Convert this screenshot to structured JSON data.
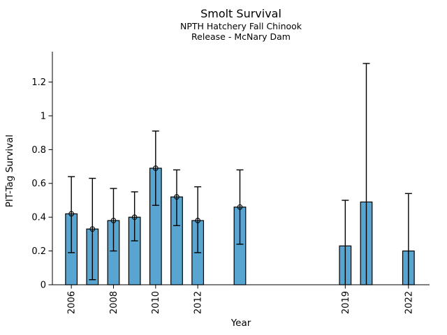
{
  "chart_data": {
    "type": "bar",
    "title": "Smolt Survival",
    "subtitle_lines": [
      "NPTH Hatchery Fall Chinook",
      "Release - McNary Dam"
    ],
    "xlabel": "Year",
    "ylabel": "PIT-Tag Survival",
    "xlim": [
      2005.1,
      2023.0
    ],
    "ylim": [
      0,
      1.38
    ],
    "xticks": [
      2006,
      2008,
      2010,
      2012,
      2019,
      2022
    ],
    "yticks": [
      0,
      0.2,
      0.4,
      0.6,
      0.8,
      1,
      1.2
    ],
    "grid": false,
    "legend": "none",
    "bar_width_years": 0.55,
    "bar_color": "#58A5D2",
    "bar_edge_color": "#000000",
    "error_bar_color": "#000000",
    "marker_style": "open-circle",
    "points": [
      {
        "year": 2006,
        "value": 0.42,
        "err_lo": 0.19,
        "err_hi": 0.64,
        "marker": true
      },
      {
        "year": 2007,
        "value": 0.33,
        "err_lo": 0.03,
        "err_hi": 0.63,
        "marker": true
      },
      {
        "year": 2008,
        "value": 0.38,
        "err_lo": 0.2,
        "err_hi": 0.57,
        "marker": true
      },
      {
        "year": 2009,
        "value": 0.4,
        "err_lo": 0.26,
        "err_hi": 0.55,
        "marker": true
      },
      {
        "year": 2010,
        "value": 0.69,
        "err_lo": 0.47,
        "err_hi": 0.91,
        "marker": true
      },
      {
        "year": 2011,
        "value": 0.52,
        "err_lo": 0.35,
        "err_hi": 0.68,
        "marker": true
      },
      {
        "year": 2012,
        "value": 0.38,
        "err_lo": 0.19,
        "err_hi": 0.58,
        "marker": true
      },
      {
        "year": 2014,
        "value": 0.46,
        "err_lo": 0.24,
        "err_hi": 0.68,
        "marker": true
      },
      {
        "year": 2019,
        "value": 0.23,
        "err_lo": 0.0,
        "err_hi": 0.5,
        "marker": false
      },
      {
        "year": 2020,
        "value": 0.49,
        "err_lo": 0.0,
        "err_hi": 1.31,
        "marker": false
      },
      {
        "year": 2022,
        "value": 0.2,
        "err_lo": 0.0,
        "err_hi": 0.54,
        "marker": false
      }
    ]
  }
}
